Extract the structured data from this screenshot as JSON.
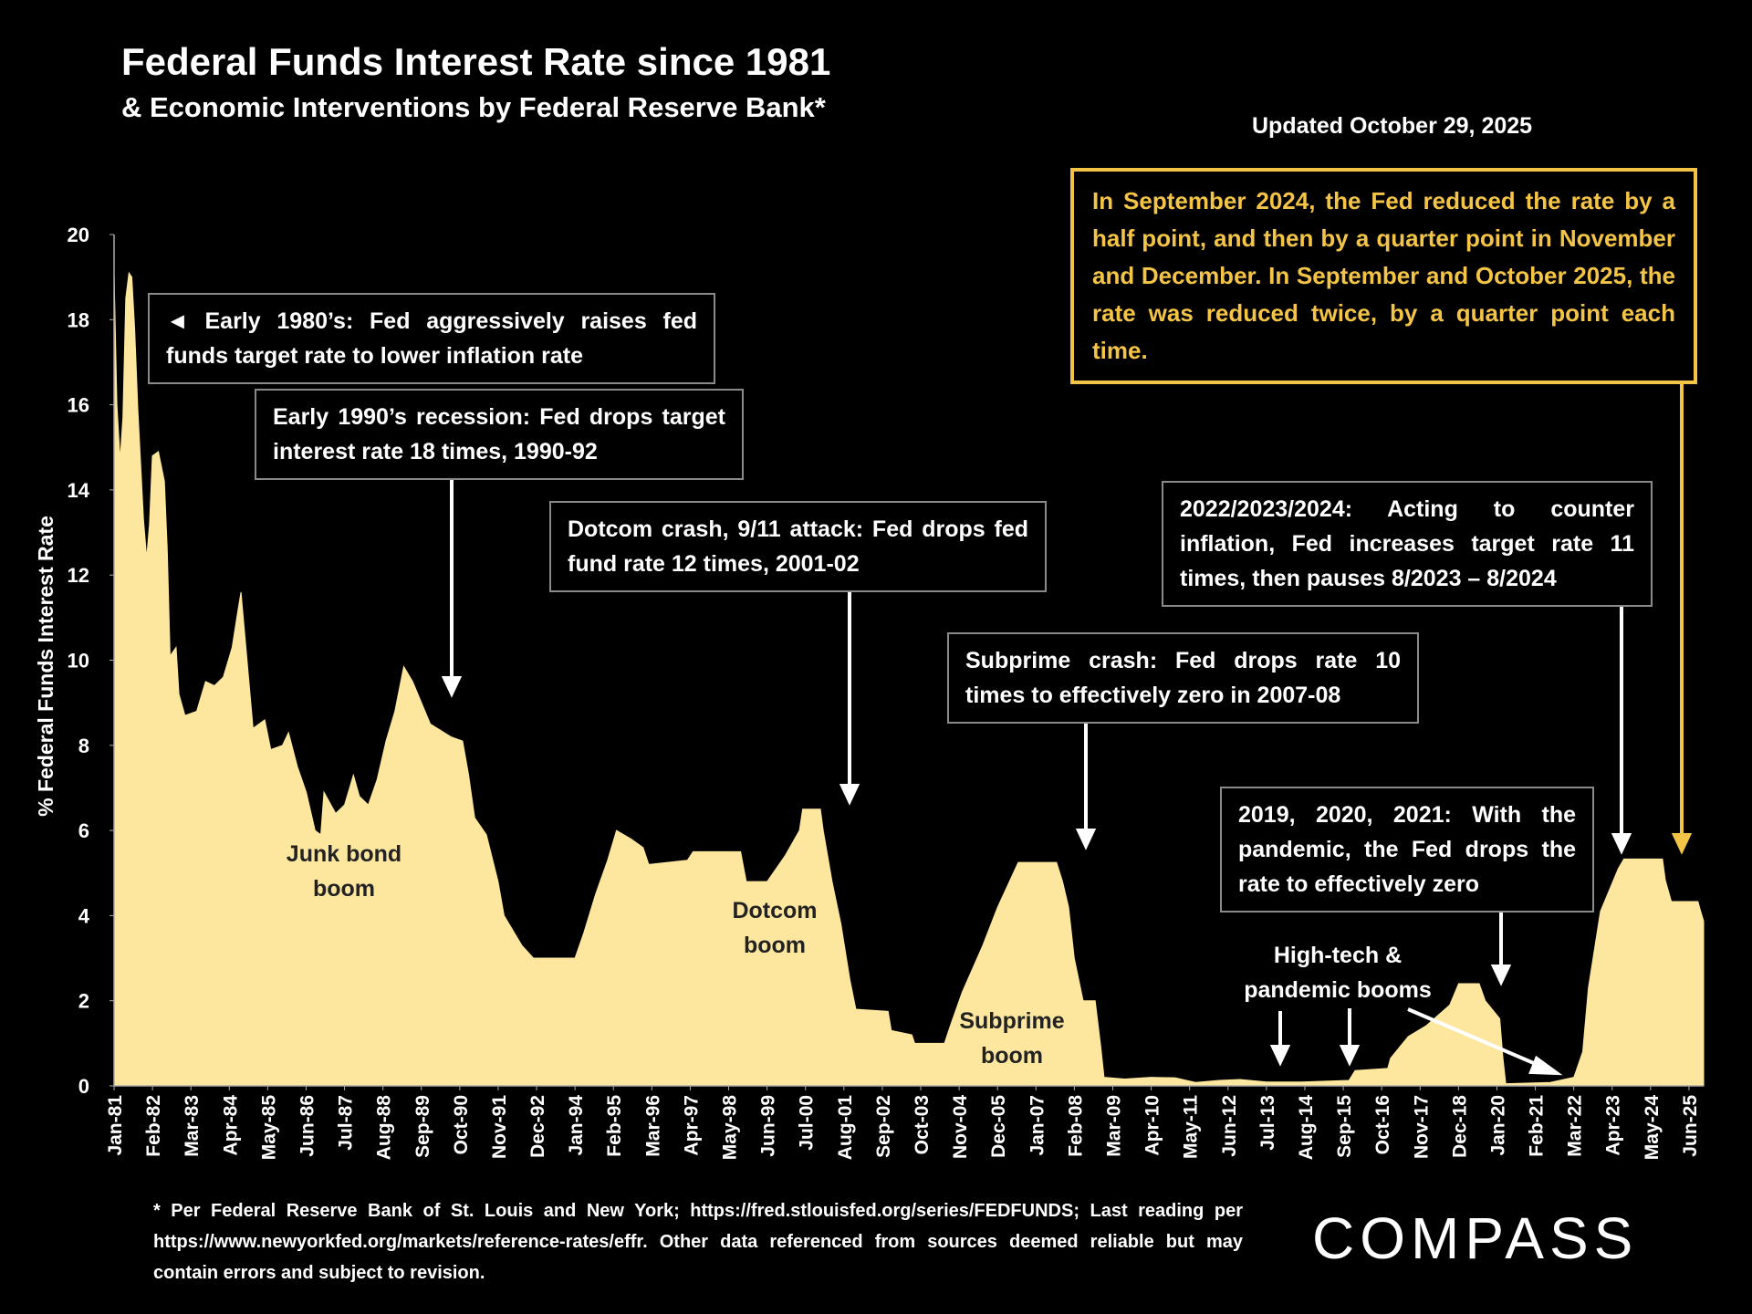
{
  "chart_data": {
    "type": "area",
    "title": "Federal Funds Interest Rate since 1981",
    "subtitle": "& Economic Interventions by Federal Reserve Bank*",
    "updated": "Updated October 29, 2025",
    "y_label": "% Federal Funds Interest Rate",
    "color": "#fde79f",
    "x": [
      1981.0,
      1981.08,
      1981.17,
      1981.25,
      1981.33,
      1981.42,
      1981.5,
      1981.58,
      1981.67,
      1981.83,
      1981.92,
      1982.0,
      1982.08,
      1982.25,
      1982.42,
      1982.5,
      1982.58,
      1982.75,
      1982.83,
      1983.0,
      1983.33,
      1983.58,
      1983.83,
      1984.08,
      1984.33,
      1984.5,
      1984.58,
      1984.75,
      1984.92,
      1985.25,
      1985.42,
      1985.75,
      1985.92,
      1986.17,
      1986.42,
      1986.67,
      1986.83,
      1986.92,
      1987.25,
      1987.5,
      1987.75,
      1987.92,
      1988.17,
      1988.42,
      1988.67,
      1988.92,
      1989.17,
      1989.42,
      1989.67,
      1989.92,
      1990.5,
      1990.83,
      1991.0,
      1991.17,
      1991.5,
      1991.83,
      1992.0,
      1992.5,
      1992.83,
      1994.0,
      1994.25,
      1994.58,
      1994.92,
      1995.17,
      1995.58,
      1995.92,
      1996.08,
      1997.17,
      1997.33,
      1998.67,
      1998.83,
      1999.42,
      1999.92,
      2000.33,
      2000.42,
      2000.92,
      2001.0,
      2001.25,
      2001.5,
      2001.75,
      2001.92,
      2002.83,
      2002.92,
      2003.5,
      2003.58,
      2004.42,
      2004.58,
      2004.92,
      2005.5,
      2005.92,
      2006.5,
      2007.58,
      2007.75,
      2007.92,
      2008.08,
      2008.33,
      2008.67,
      2008.83,
      2008.92,
      2009.5,
      2010.25,
      2010.92,
      2011.5,
      2012.17,
      2012.75,
      2013.5,
      2014.5,
      2015.83,
      2016.0,
      2016.92,
      2017.0,
      2017.5,
      2018.0,
      2018.67,
      2018.92,
      2019.5,
      2019.67,
      2020.08,
      2020.17,
      2020.25,
      2021.5,
      2022.17,
      2022.42,
      2022.58,
      2022.92,
      2023.42,
      2023.58,
      2024.67,
      2024.75,
      2024.92,
      2025.67,
      2025.75,
      2025.83
    ],
    "values": [
      19.1,
      16.0,
      14.7,
      15.7,
      18.5,
      19.1,
      19.0,
      17.8,
      15.9,
      13.3,
      12.4,
      13.2,
      14.8,
      14.9,
      14.2,
      12.6,
      10.1,
      10.3,
      9.2,
      8.7,
      8.8,
      9.5,
      9.4,
      9.6,
      10.3,
      11.2,
      11.6,
      10.0,
      8.4,
      8.6,
      7.9,
      8.0,
      8.3,
      7.5,
      6.9,
      6.0,
      5.9,
      6.9,
      6.4,
      6.6,
      7.3,
      6.8,
      6.6,
      7.2,
      8.1,
      8.8,
      9.85,
      9.5,
      9.0,
      8.5,
      8.2,
      8.1,
      7.3,
      6.3,
      5.9,
      4.8,
      4.0,
      3.3,
      3.0,
      3.0,
      3.6,
      4.5,
      5.3,
      6.0,
      5.8,
      5.6,
      5.2,
      5.3,
      5.5,
      5.5,
      4.8,
      4.8,
      5.4,
      6.0,
      6.5,
      6.5,
      6.0,
      4.8,
      3.8,
      2.5,
      1.8,
      1.75,
      1.3,
      1.2,
      1.0,
      1.0,
      1.4,
      2.2,
      3.3,
      4.2,
      5.25,
      5.25,
      4.8,
      4.2,
      3.0,
      2.0,
      2.0,
      0.9,
      0.2,
      0.16,
      0.2,
      0.19,
      0.08,
      0.13,
      0.15,
      0.09,
      0.09,
      0.13,
      0.36,
      0.41,
      0.65,
      1.16,
      1.41,
      1.9,
      2.4,
      2.4,
      2.0,
      1.58,
      0.65,
      0.05,
      0.08,
      0.2,
      0.8,
      2.3,
      4.1,
      5.1,
      5.33,
      5.33,
      4.83,
      4.33,
      4.33,
      4.09,
      3.87
    ],
    "xlim": [
      1981.0,
      2025.83
    ],
    "ylim": [
      0,
      20
    ],
    "yticks": [
      0,
      2,
      4,
      6,
      8,
      10,
      12,
      14,
      16,
      18,
      20
    ],
    "xticks": [
      {
        "value": 1981.0,
        "label": "Jan-81"
      },
      {
        "value": 1982.0833,
        "label": "Feb-82"
      },
      {
        "value": 1983.1667,
        "label": "Mar-83"
      },
      {
        "value": 1984.25,
        "label": "Apr-84"
      },
      {
        "value": 1985.3333,
        "label": "May-85"
      },
      {
        "value": 1986.4167,
        "label": "Jun-86"
      },
      {
        "value": 1987.5,
        "label": "Jul-87"
      },
      {
        "value": 1988.5833,
        "label": "Aug-88"
      },
      {
        "value": 1989.6667,
        "label": "Sep-89"
      },
      {
        "value": 1990.75,
        "label": "Oct-90"
      },
      {
        "value": 1991.8333,
        "label": "Nov-91"
      },
      {
        "value": 1992.9167,
        "label": "Dec-92"
      },
      {
        "value": 1994.0,
        "label": "Jan-94"
      },
      {
        "value": 1995.0833,
        "label": "Feb-95"
      },
      {
        "value": 1996.1667,
        "label": "Mar-96"
      },
      {
        "value": 1997.25,
        "label": "Apr-97"
      },
      {
        "value": 1998.3333,
        "label": "May-98"
      },
      {
        "value": 1999.4167,
        "label": "Jun-99"
      },
      {
        "value": 2000.5,
        "label": "Jul-00"
      },
      {
        "value": 2001.5833,
        "label": "Aug-01"
      },
      {
        "value": 2002.6667,
        "label": "Sep-02"
      },
      {
        "value": 2003.75,
        "label": "Oct-03"
      },
      {
        "value": 2004.8333,
        "label": "Nov-04"
      },
      {
        "value": 2005.9167,
        "label": "Dec-05"
      },
      {
        "value": 2007.0,
        "label": "Jan-07"
      },
      {
        "value": 2008.0833,
        "label": "Feb-08"
      },
      {
        "value": 2009.1667,
        "label": "Mar-09"
      },
      {
        "value": 2010.25,
        "label": "Apr-10"
      },
      {
        "value": 2011.3333,
        "label": "May-11"
      },
      {
        "value": 2012.4167,
        "label": "Jun-12"
      },
      {
        "value": 2013.5,
        "label": "Jul-13"
      },
      {
        "value": 2014.5833,
        "label": "Aug-14"
      },
      {
        "value": 2015.6667,
        "label": "Sep-15"
      },
      {
        "value": 2016.75,
        "label": "Oct-16"
      },
      {
        "value": 2017.8333,
        "label": "Nov-17"
      },
      {
        "value": 2018.9167,
        "label": "Dec-18"
      },
      {
        "value": 2020.0,
        "label": "Jan-20"
      },
      {
        "value": 2021.0833,
        "label": "Feb-21"
      },
      {
        "value": 2022.1667,
        "label": "Mar-22"
      },
      {
        "value": 2023.25,
        "label": "Apr-23"
      },
      {
        "value": 2024.3333,
        "label": "May-24"
      },
      {
        "value": 2025.4167,
        "label": "Jun-25"
      }
    ],
    "grid": false,
    "annotations": [
      "◄ Early 1980’s: Fed aggressively raises fed funds target rate to lower inflation rate",
      "Early 1990’s recession: Fed drops target interest rate 18 times, 1990-92",
      "Dotcom crash, 9/11 attack: Fed drops fed fund rate 12 times, 2001-02",
      "Subprime crash: Fed drops rate 10 times to effectively zero in 2007-08",
      "2022/2023/2024: Acting to counter inflation, Fed increases target rate 11 times, then pauses 8/2023 – 8/2024",
      "2019, 2020, 2021: With the pandemic, the Fed drops the  rate to effectively zero"
    ],
    "highlight": "In September 2024, the Fed reduced the rate by a half point, and then by a quarter point in November and December. In September and October 2025, the rate was reduced twice, by a quarter point each time.",
    "boom_labels": [
      "Junk bond\nboom",
      "Dotcom\nboom",
      "Subprime\nboom",
      "High-tech &\npandemic booms"
    ],
    "footnote": "* Per Federal Reserve Bank of St. Louis and New York; https://fred.stlouisfed.org/series/FEDFUNDS; Last reading per https://www.newyorkfed.org/markets/reference-rates/effr. Other data referenced from sources deemed reliable but may contain errors and subject to revision.",
    "logo": "COMPASS"
  }
}
